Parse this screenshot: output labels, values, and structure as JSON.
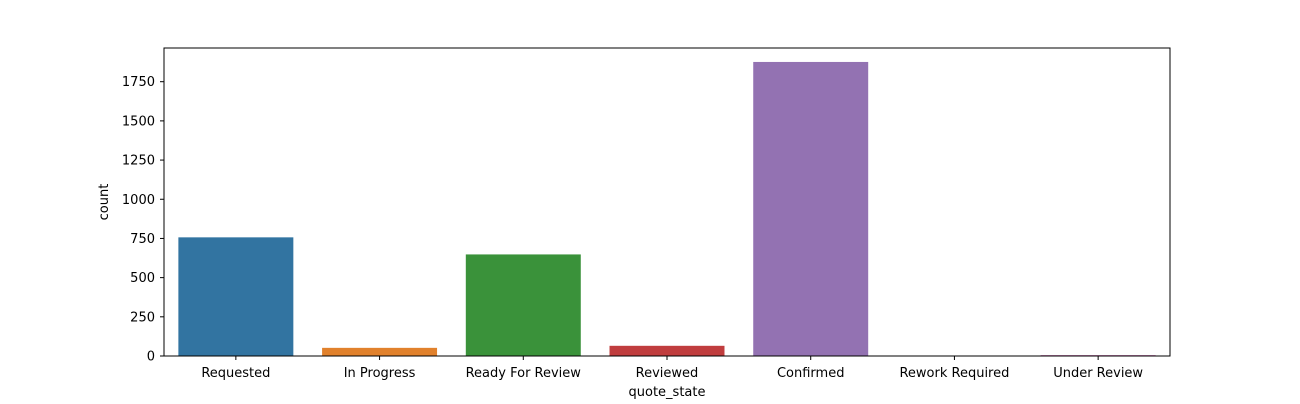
{
  "chart_data": {
    "type": "bar",
    "title": "",
    "xlabel": "quote_state",
    "ylabel": "count",
    "categories": [
      "Requested",
      "In Progress",
      "Ready For Review",
      "Reviewed",
      "Confirmed",
      "Rework Required",
      "Under Review"
    ],
    "values": [
      757,
      52,
      648,
      65,
      1876,
      2,
      6
    ],
    "colors": [
      "#3274a1",
      "#e1812c",
      "#3a923a",
      "#c03d3e",
      "#9372b2",
      "#845b53",
      "#d684bd"
    ],
    "ylim": [
      0,
      1965
    ],
    "yticks": [
      0,
      250,
      500,
      750,
      1000,
      1250,
      1500,
      1750
    ],
    "grid": false,
    "legend": "none"
  }
}
